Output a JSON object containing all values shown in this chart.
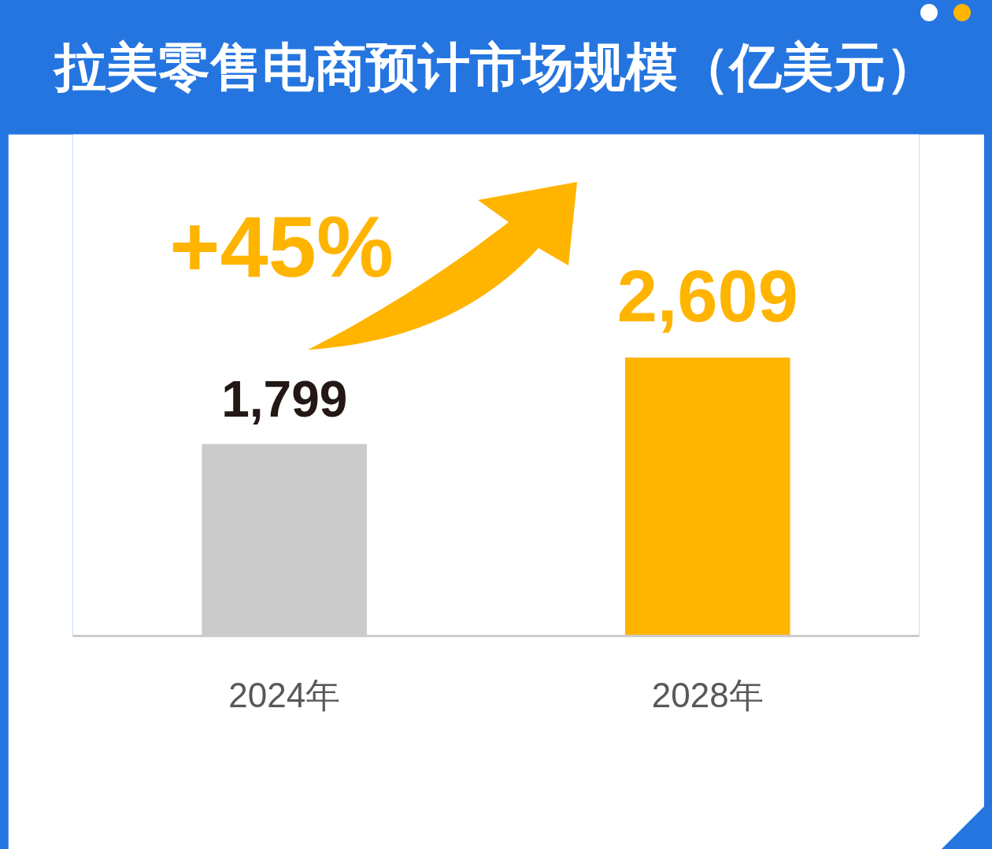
{
  "chart_data": {
    "type": "bar",
    "title": "拉美零售电商预计市场规模（亿美元）",
    "categories": [
      "2024年",
      "2028年"
    ],
    "values": [
      1799,
      2609
    ],
    "colors": [
      "#cbcbcb",
      "#ffb400"
    ],
    "value_labels": [
      "1,799",
      "2,609"
    ],
    "ylim": [
      0,
      4700
    ],
    "tick_labels": "x",
    "annotations": [
      "+45%"
    ]
  }
}
